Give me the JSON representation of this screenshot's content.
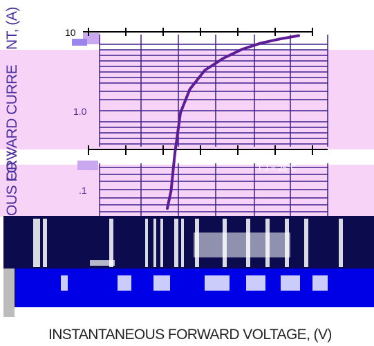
{
  "chart_data": {
    "type": "line",
    "title": "",
    "xlabel": "INSTANTANEOUS FORWARD VOLTAGE, (V)",
    "ylabel_fragments": [
      "NT, (A)",
      "VARD CURRE",
      "ORV",
      "OUS FO"
    ],
    "y_scale": "log",
    "y_tick_labels": [
      "10",
      "1.0",
      ".1"
    ],
    "x_tick_labels": [],
    "annotation": "T J = 25℃",
    "series": [
      {
        "points": [
          [
            0.0,
            0.06
          ],
          [
            0.02,
            0.1
          ],
          [
            0.04,
            0.3
          ],
          [
            0.07,
            1.0
          ],
          [
            0.12,
            2.0
          ],
          [
            0.2,
            3.5
          ],
          [
            0.3,
            5.0
          ],
          [
            0.4,
            6.5
          ],
          [
            0.5,
            7.8
          ],
          [
            0.6,
            8.8
          ],
          [
            0.7,
            9.7
          ]
        ]
      }
    ],
    "colors": {
      "curve": "#5c1d97",
      "grid": "#3b1f8c",
      "panel": "#f7d3f7",
      "dark_band": "#0b0b4e",
      "blue_band": "#0000e6"
    }
  }
}
